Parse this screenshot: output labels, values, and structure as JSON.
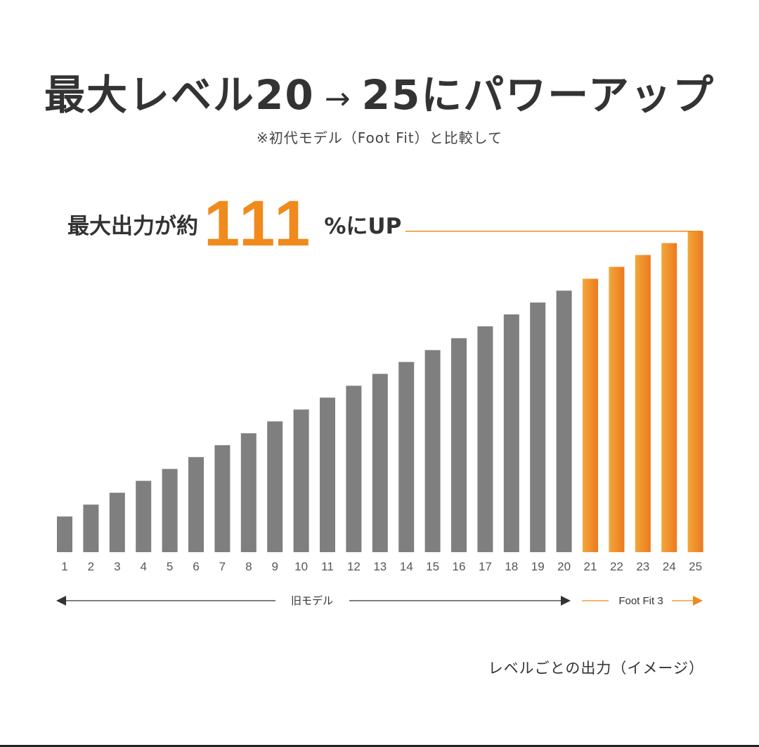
{
  "title": {
    "left": "最大レベル20",
    "arrow": "→",
    "right": "25にパワーアップ"
  },
  "subtitle": "※初代モデル（Foot Fit）と比較して",
  "callout": {
    "lead": "最大出力が約",
    "value": "111",
    "tail": "%にUP"
  },
  "caption": "レベルごとの出力（イメージ）",
  "colors": {
    "old_bar": "#7f7f7f",
    "new_bar_start": "#f2a73a",
    "new_bar_end": "#ec7a1f",
    "accent": "#f08a1c",
    "text": "#333333"
  },
  "chart_data": {
    "type": "bar",
    "categories": [
      "1",
      "2",
      "3",
      "4",
      "5",
      "6",
      "7",
      "8",
      "9",
      "10",
      "11",
      "12",
      "13",
      "14",
      "15",
      "16",
      "17",
      "18",
      "19",
      "20",
      "21",
      "22",
      "23",
      "24",
      "25"
    ],
    "values": [
      3,
      4,
      5,
      6,
      7,
      8,
      9,
      10,
      11,
      12,
      13,
      14,
      15,
      16,
      17,
      18,
      19,
      20,
      21,
      22,
      23,
      24,
      25,
      26,
      27
    ],
    "series": [
      {
        "name": "旧モデル",
        "range": [
          1,
          20
        ],
        "color": "#7f7f7f"
      },
      {
        "name": "Foot Fit 3",
        "range": [
          21,
          25
        ],
        "color": "#ec7a1f"
      }
    ],
    "ranges": {
      "old_label": "旧モデル",
      "new_label": "Foot Fit 3"
    },
    "ylim": [
      0,
      27
    ],
    "grid": false,
    "y_axis_visible": false
  }
}
